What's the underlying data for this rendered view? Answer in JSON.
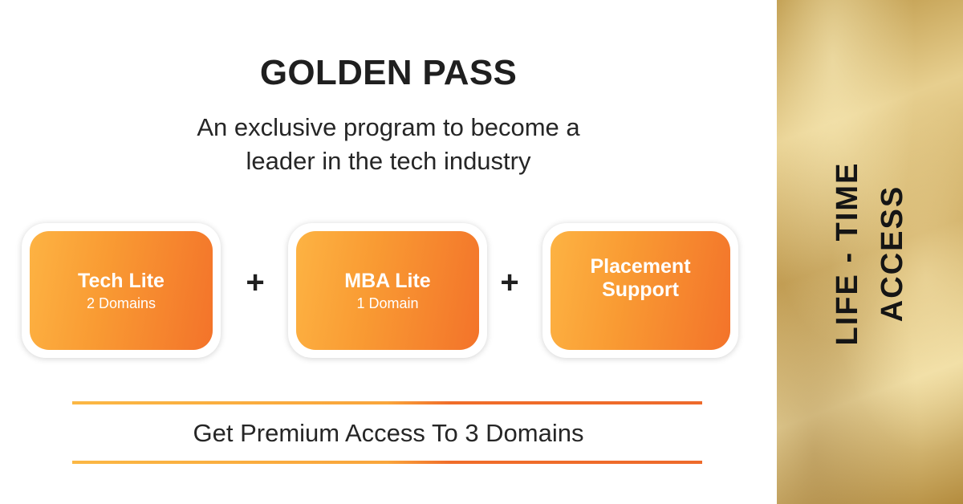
{
  "header": {
    "title": "GOLDEN PASS",
    "subtitle_line1": "An exclusive program to become a",
    "subtitle_line2": "leader in the tech industry"
  },
  "cards": [
    {
      "title": "Tech Lite",
      "subtitle": "2 Domains"
    },
    {
      "title": "MBA Lite",
      "subtitle": "1 Domain"
    },
    {
      "title_line1": "Placement",
      "title_line2": "Support"
    }
  ],
  "plus_symbol": "+",
  "footer": {
    "text": "Get Premium Access To 3 Domains"
  },
  "side_panel": {
    "line1": "LIFE - TIME",
    "line2": "ACCESS"
  },
  "colors": {
    "card_gradient_start": "#fdb343",
    "card_gradient_end": "#f3732a",
    "text_dark": "#1f1f1f",
    "gold": "#d8bb74"
  }
}
